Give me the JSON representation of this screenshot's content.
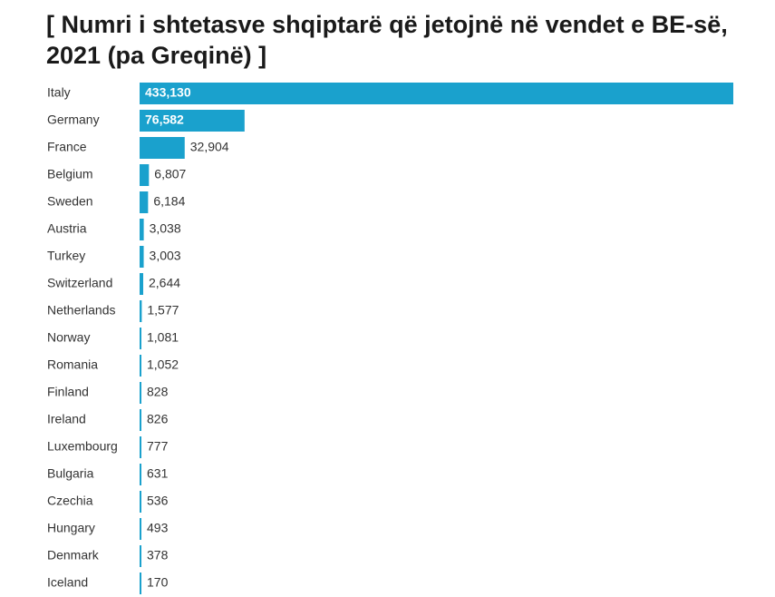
{
  "chart_data": {
    "type": "bar",
    "orientation": "horizontal",
    "title": "[ Numri i shtetasve shqiptarë që jetojnë në vendet e BE-së, 2021 (pa Greqinë) ]",
    "categories": [
      "Italy",
      "Germany",
      "France",
      "Belgium",
      "Sweden",
      "Austria",
      "Turkey",
      "Switzerland",
      "Netherlands",
      "Norway",
      "Romania",
      "Finland",
      "Ireland",
      "Luxembourg",
      "Bulgaria",
      "Czechia",
      "Hungary",
      "Denmark",
      "Iceland"
    ],
    "values": [
      433130,
      76582,
      32904,
      6807,
      6184,
      3038,
      3003,
      2644,
      1577,
      1081,
      1052,
      828,
      826,
      777,
      631,
      536,
      493,
      378,
      170
    ],
    "value_labels": [
      "433,130",
      "76,582",
      "32,904",
      "6,807",
      "6,184",
      "3,038",
      "3,003",
      "2,644",
      "1,577",
      "1,081",
      "1,052",
      "828",
      "826",
      "777",
      "631",
      "536",
      "493",
      "378",
      "170"
    ],
    "xlim": [
      0,
      433130
    ],
    "bar_color": "#1aa1cd",
    "grid": false,
    "legend": "none"
  }
}
